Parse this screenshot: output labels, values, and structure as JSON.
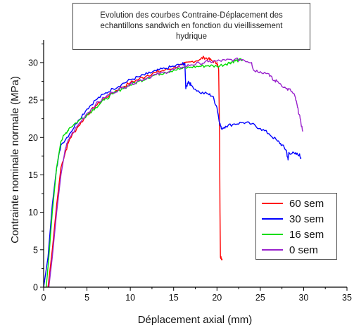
{
  "chart_data": {
    "type": "line",
    "title_lines": [
      "Evolution des courbes Contraine-Déplacement des",
      "echantillons sandwich en fonction du vieillissement",
      "hydrique"
    ],
    "xlabel": "Déplacement axial (mm)",
    "ylabel": "Contrainte nominale normale (MPa)",
    "xlim": [
      0,
      35
    ],
    "ylim": [
      0,
      33
    ],
    "x_ticks": [
      "0",
      "5",
      "10",
      "15",
      "20",
      "25",
      "30",
      "35"
    ],
    "y_ticks": [
      "0",
      "5",
      "10",
      "15",
      "20",
      "25",
      "30"
    ],
    "legend_position": "lower-right",
    "grid": false,
    "series": [
      {
        "name": "60 sem",
        "color": "#ff0000",
        "points": [
          [
            0.5,
            0
          ],
          [
            1,
            5
          ],
          [
            1.5,
            11
          ],
          [
            2,
            16
          ],
          [
            2.5,
            18
          ],
          [
            3,
            19.8
          ],
          [
            4,
            21.5
          ],
          [
            5,
            23
          ],
          [
            6,
            24.2
          ],
          [
            7,
            25.2
          ],
          [
            8,
            26
          ],
          [
            9,
            26.7
          ],
          [
            10,
            27.3
          ],
          [
            11,
            27.8
          ],
          [
            12,
            28.3
          ],
          [
            13,
            28.7
          ],
          [
            14,
            29
          ],
          [
            15,
            29.3
          ],
          [
            16,
            29.7
          ],
          [
            17,
            30.1
          ],
          [
            18,
            30.4
          ],
          [
            18.5,
            30.7
          ],
          [
            19,
            30.5
          ],
          [
            19.5,
            30.2
          ],
          [
            20,
            30
          ],
          [
            20.2,
            29
          ],
          [
            20.3,
            20
          ],
          [
            20.35,
            10
          ],
          [
            20.4,
            4
          ],
          [
            20.6,
            3.8
          ]
        ]
      },
      {
        "name": "30 sem",
        "color": "#0000ff",
        "points": [
          [
            0,
            0
          ],
          [
            0.5,
            4
          ],
          [
            1,
            11
          ],
          [
            1.5,
            16
          ],
          [
            2,
            19
          ],
          [
            3,
            20.5
          ],
          [
            4,
            22.3
          ],
          [
            5,
            23.8
          ],
          [
            6,
            25
          ],
          [
            7,
            25.8
          ],
          [
            8,
            26.5
          ],
          [
            9,
            27.1
          ],
          [
            10,
            27.7
          ],
          [
            11,
            28.1
          ],
          [
            12,
            28.5
          ],
          [
            13,
            28.9
          ],
          [
            14,
            29.2
          ],
          [
            15,
            29.5
          ],
          [
            16,
            29.8
          ],
          [
            16.3,
            29.9
          ],
          [
            16.4,
            26.5
          ],
          [
            16.7,
            27.5
          ],
          [
            17,
            27
          ],
          [
            18,
            26
          ],
          [
            19,
            25.8
          ],
          [
            19.5,
            25.5
          ],
          [
            20,
            24
          ],
          [
            20.3,
            22
          ],
          [
            20.5,
            21.2
          ],
          [
            21,
            21.5
          ],
          [
            22,
            21.8
          ],
          [
            23,
            22
          ],
          [
            24,
            21.8
          ],
          [
            25,
            21.2
          ],
          [
            26,
            20.5
          ],
          [
            27,
            19.5
          ],
          [
            27.5,
            19
          ],
          [
            28,
            18.3
          ],
          [
            28.2,
            17
          ],
          [
            28.3,
            18
          ],
          [
            29,
            17.8
          ],
          [
            29.5,
            17.7
          ],
          [
            29.7,
            17.3
          ]
        ]
      },
      {
        "name": "16 sem",
        "color": "#00dd00",
        "points": [
          [
            0.3,
            0
          ],
          [
            0.6,
            4
          ],
          [
            1,
            10
          ],
          [
            1.5,
            16
          ],
          [
            2,
            19.5
          ],
          [
            2.5,
            20.5
          ],
          [
            3,
            21.3
          ],
          [
            4,
            22.2
          ],
          [
            5,
            23
          ],
          [
            6,
            24
          ],
          [
            7,
            25
          ],
          [
            8,
            25.8
          ],
          [
            9,
            26.5
          ],
          [
            10,
            27
          ],
          [
            11,
            27.5
          ],
          [
            12,
            28
          ],
          [
            13,
            28.4
          ],
          [
            14,
            28.7
          ],
          [
            15,
            29
          ],
          [
            16,
            29.2
          ],
          [
            17,
            29.4
          ],
          [
            18,
            29.5
          ],
          [
            19,
            29.6
          ],
          [
            20,
            29.5
          ],
          [
            21,
            29.8
          ],
          [
            21.5,
            30
          ],
          [
            22,
            30.2
          ],
          [
            22.5,
            30.3
          ],
          [
            23,
            30.4
          ]
        ]
      },
      {
        "name": "0 sem",
        "color": "#9922cc",
        "points": [
          [
            0.6,
            0
          ],
          [
            1,
            4
          ],
          [
            1.5,
            10
          ],
          [
            2,
            15
          ],
          [
            2.5,
            18.5
          ],
          [
            3,
            20
          ],
          [
            4,
            21.7
          ],
          [
            5,
            23.2
          ],
          [
            6,
            24.4
          ],
          [
            7,
            25.3
          ],
          [
            8,
            26
          ],
          [
            9,
            26.6
          ],
          [
            10,
            27.1
          ],
          [
            11,
            27.6
          ],
          [
            12,
            28
          ],
          [
            13,
            28.4
          ],
          [
            14,
            28.7
          ],
          [
            15,
            29.1
          ],
          [
            16,
            29.4
          ],
          [
            17,
            29.7
          ],
          [
            18,
            29.9
          ],
          [
            19,
            30.1
          ],
          [
            20,
            30.2
          ],
          [
            21,
            30.3
          ],
          [
            22,
            30.4
          ],
          [
            23,
            30.4
          ],
          [
            24,
            30
          ],
          [
            24.2,
            29
          ],
          [
            25,
            28.8
          ],
          [
            26,
            28.5
          ],
          [
            26.5,
            27.6
          ],
          [
            27,
            27.5
          ],
          [
            28,
            26.5
          ],
          [
            28.5,
            26.3
          ],
          [
            29,
            25.5
          ],
          [
            29.3,
            24
          ],
          [
            29.6,
            22.5
          ],
          [
            29.9,
            20.8
          ]
        ]
      }
    ]
  }
}
